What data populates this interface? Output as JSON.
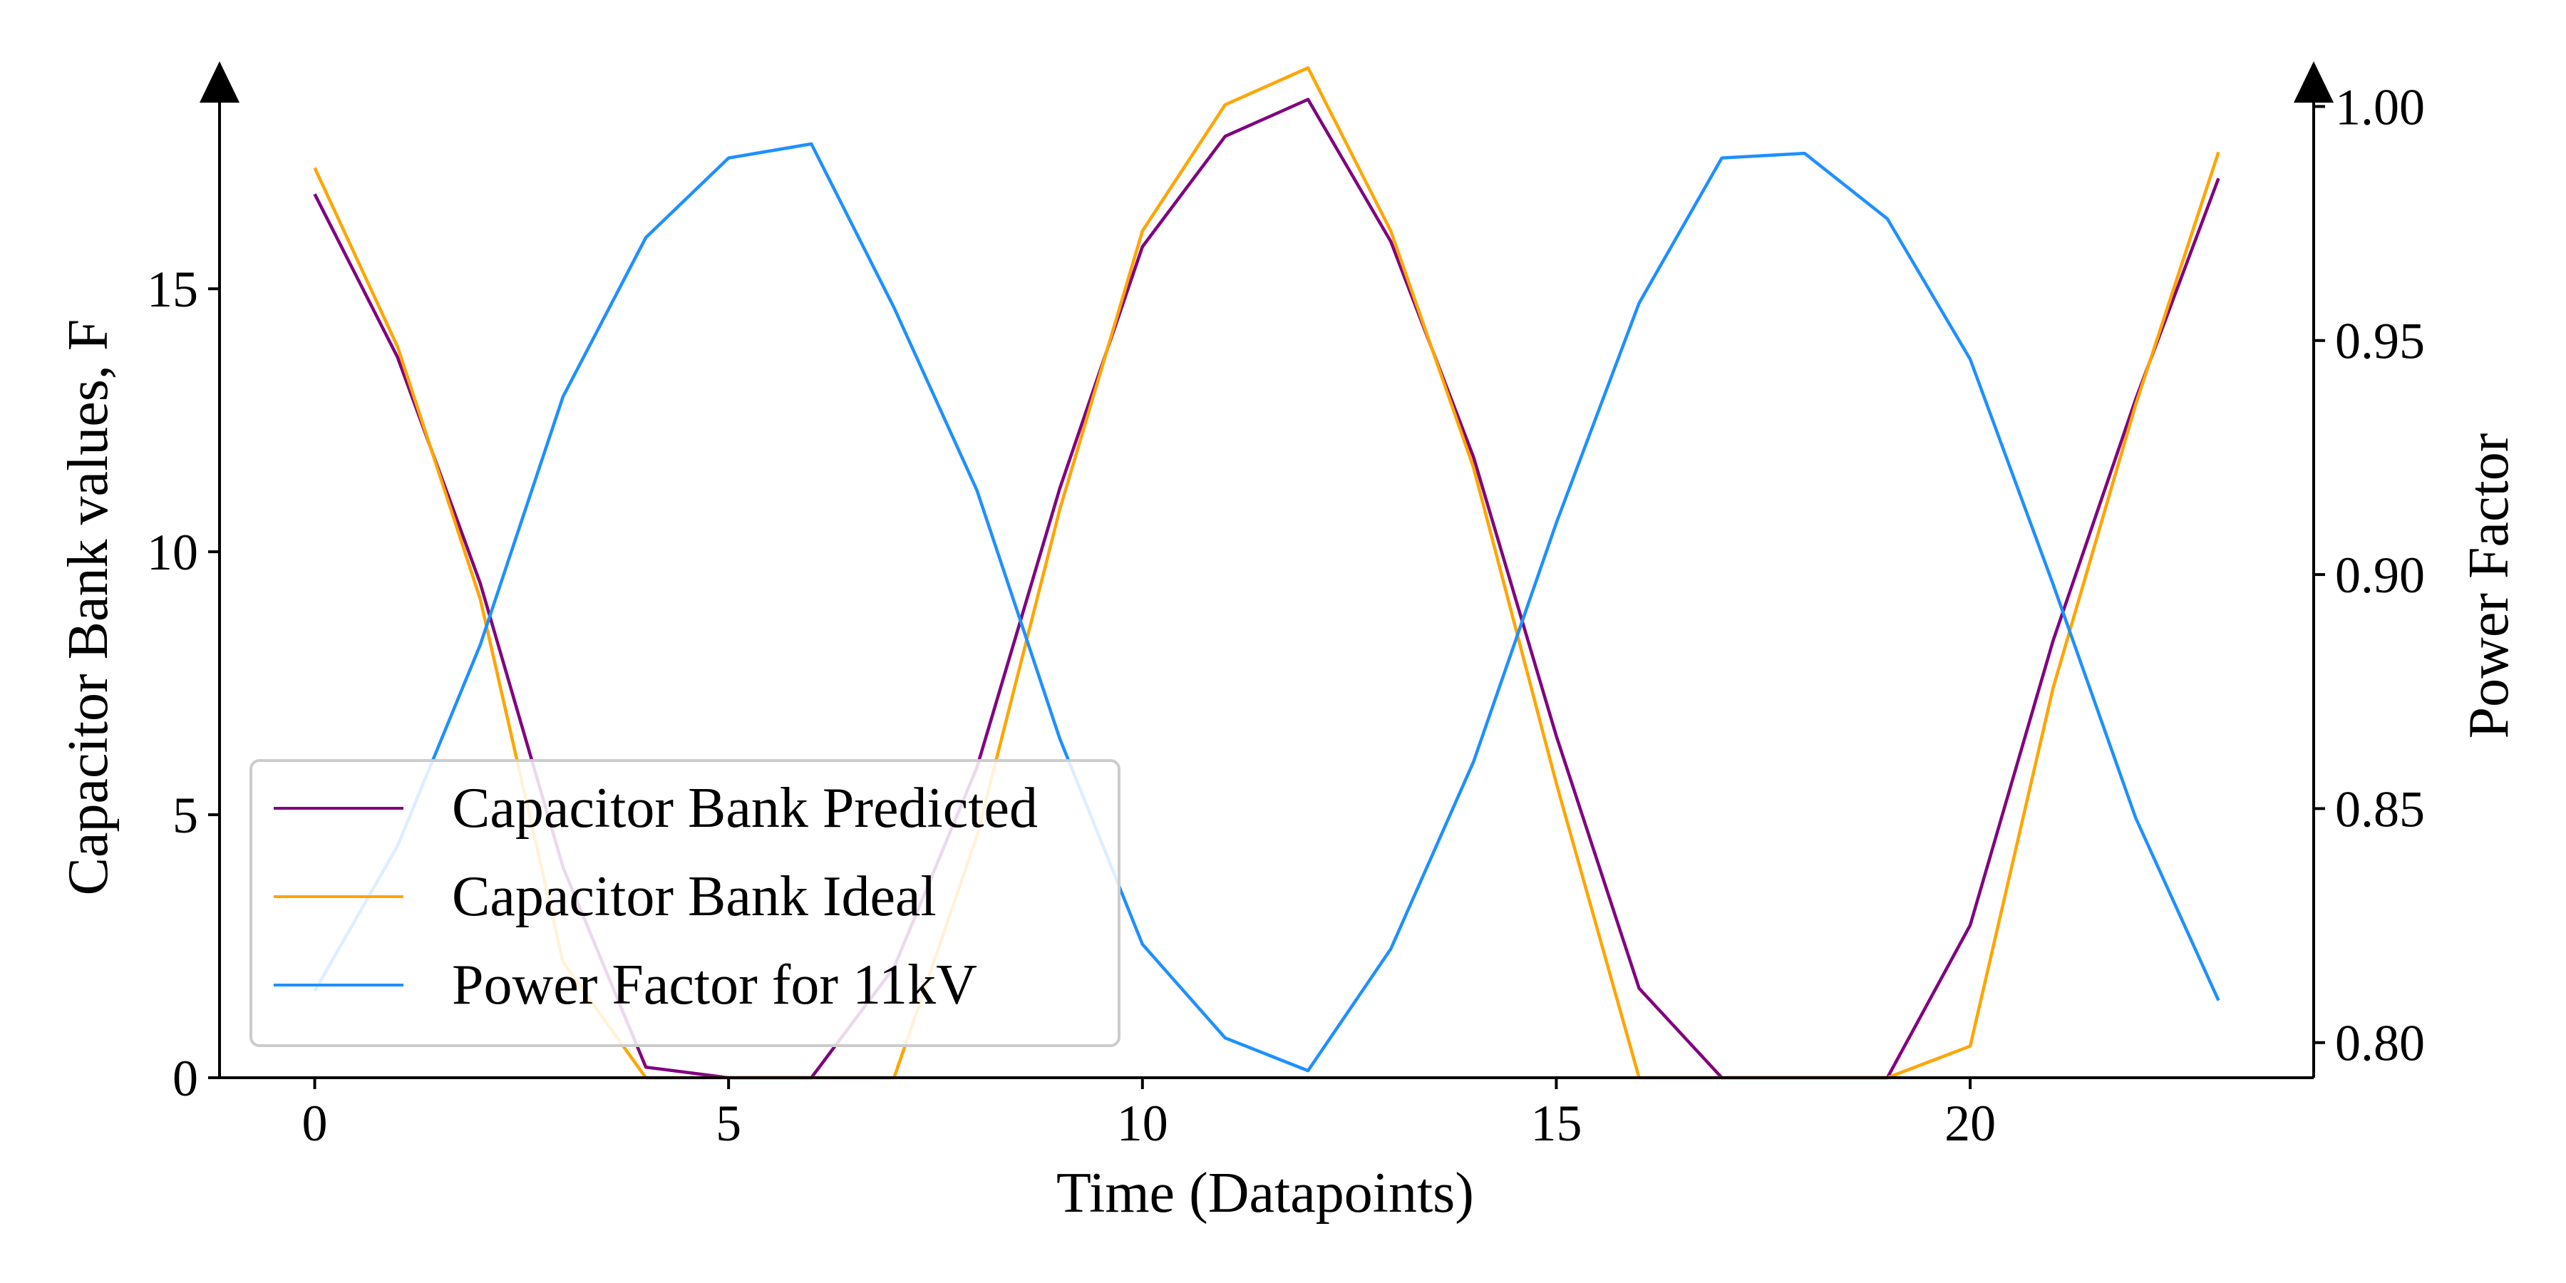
{
  "chart_data": {
    "type": "line",
    "title": "",
    "xlabel": "Time (Datapoints)",
    "ylabel_left": "Capacitor Bank values, F",
    "ylabel_right": "Power Factor",
    "xlim": [
      -1.15,
      24.15
    ],
    "ylim_left": [
      0,
      19
    ],
    "ylim_right": [
      0.7925,
      1.006
    ],
    "x_ticks": [
      0,
      5,
      10,
      15,
      20
    ],
    "y_ticks_left": [
      0,
      5,
      10,
      15
    ],
    "y_ticks_right": [
      0.8,
      0.85,
      0.9,
      0.95,
      1.0
    ],
    "grid": false,
    "legend_position": "lower-left",
    "x": [
      0,
      1,
      2,
      3,
      4,
      5,
      6,
      7,
      8,
      9,
      10,
      11,
      12,
      13,
      14,
      15,
      16,
      17,
      18,
      19,
      20,
      21,
      22,
      23
    ],
    "series": [
      {
        "name": "Capacitor Bank Predicted",
        "axis": "left",
        "color": "#800080",
        "values": [
          16.8,
          13.7,
          9.4,
          4.0,
          0.2,
          0.0,
          0.0,
          2.1,
          5.9,
          11.2,
          15.8,
          17.9,
          18.6,
          15.9,
          11.8,
          6.5,
          1.7,
          0.0,
          0.0,
          0.0,
          2.9,
          8.3,
          12.9,
          17.1
        ]
      },
      {
        "name": "Capacitor Bank Ideal",
        "axis": "left",
        "color": "#FFA500",
        "values": [
          17.3,
          13.9,
          9.1,
          2.2,
          0.0,
          0.0,
          0.0,
          0.0,
          4.6,
          10.8,
          16.1,
          18.5,
          19.2,
          16.1,
          11.6,
          5.6,
          0.0,
          0.0,
          0.0,
          0.0,
          0.6,
          7.4,
          12.8,
          17.6
        ]
      },
      {
        "name": "Power Factor for 11kV",
        "axis": "right",
        "color": "#1E90FF",
        "values": [
          0.811,
          0.842,
          0.885,
          0.938,
          0.972,
          0.989,
          0.992,
          0.957,
          0.918,
          0.865,
          0.821,
          0.801,
          0.794,
          0.82,
          0.86,
          0.911,
          0.958,
          0.989,
          0.99,
          0.976,
          0.946,
          0.898,
          0.848,
          0.809
        ]
      }
    ]
  }
}
